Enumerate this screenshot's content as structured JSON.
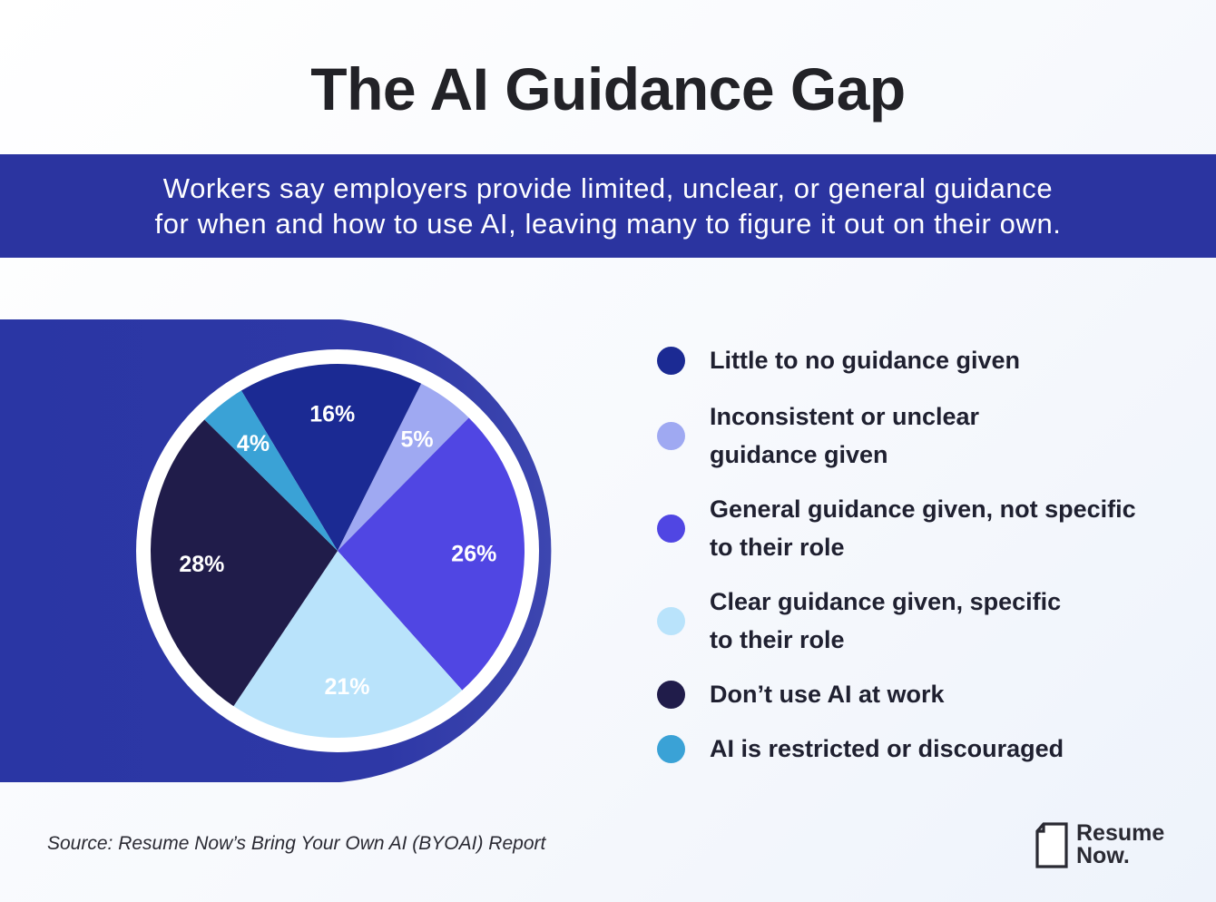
{
  "title": "The AI Guidance Gap",
  "banner": {
    "line1": "Workers say employers provide limited, unclear, or general guidance",
    "line2": "for when and how to use AI, leaving many to figure it out on their own."
  },
  "chart_data": {
    "type": "pie",
    "slices": [
      {
        "label": "Little to no guidance given",
        "value": 16,
        "value_label": "16%",
        "color": "#1b2a93"
      },
      {
        "label": "Inconsistent or unclear\nguidance given",
        "value": 5,
        "value_label": "5%",
        "color": "#9fa9f2"
      },
      {
        "label": "General guidance given, not specific\nto their role",
        "value": 26,
        "value_label": "26%",
        "color": "#5046e3"
      },
      {
        "label": "Clear guidance given, specific\nto their role",
        "value": 21,
        "value_label": "21%",
        "color": "#b9e3fb"
      },
      {
        "label": "Don’t use AI at work",
        "value": 28,
        "value_label": "28%",
        "color": "#201c4a"
      },
      {
        "label": "AI is restricted or discouraged",
        "value": 4,
        "value_label": "4%",
        "color": "#3aa2d6"
      }
    ]
  },
  "legend_order": [
    0,
    1,
    2,
    3,
    4,
    5
  ],
  "source": "Source: Resume Now’s Bring Your Own AI (BYOAI) Report",
  "brand": {
    "name": "Resume\nNow.",
    "icon": "document-icon"
  }
}
